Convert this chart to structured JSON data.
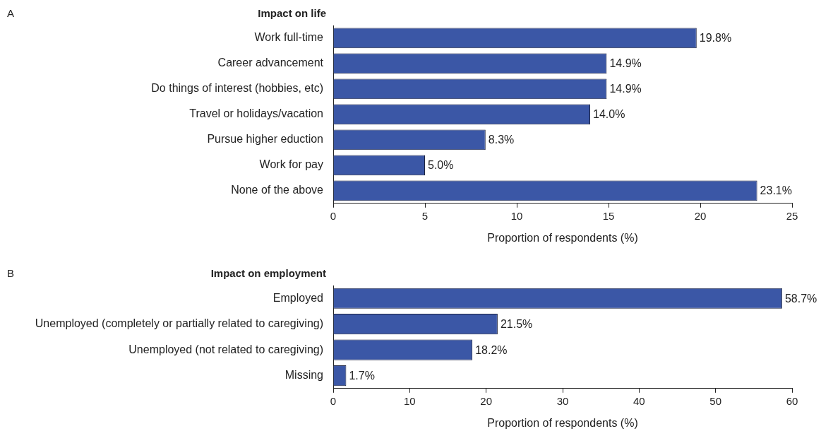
{
  "chart_data": [
    {
      "type": "bar",
      "orientation": "horizontal",
      "title": "Impact on life",
      "annotations": [
        "A"
      ],
      "xlabel": "Proportion of respondents (%)",
      "categories": [
        "Work full-time",
        "Career advancement",
        "Do things of interest (hobbies, etc)",
        "Travel or holidays/vacation",
        "Pursue higher eduction",
        "Work for pay",
        "None of the above"
      ],
      "values": [
        19.8,
        14.9,
        14.9,
        14.0,
        8.3,
        5.0,
        23.1
      ],
      "color": "#3b57a6",
      "value_labels": [
        "19.8%",
        "14.9%",
        "14.9%",
        "14.0%",
        "8.3%",
        "5.0%",
        "23.1%"
      ],
      "xlim": [
        0,
        25
      ],
      "xticks": [
        0,
        5,
        10,
        15,
        20,
        25
      ],
      "grid": false,
      "legend": false
    },
    {
      "type": "bar",
      "orientation": "horizontal",
      "title": "Impact on employment",
      "annotations": [
        "B"
      ],
      "xlabel": "Proportion of respondents (%)",
      "categories": [
        "Employed",
        "Unemployed (completely or partially related to caregiving)",
        "Unemployed (not related to caregiving)",
        "Missing"
      ],
      "values": [
        58.7,
        21.5,
        18.2,
        1.7
      ],
      "color": "#3b57a6",
      "value_labels": [
        "58.7%",
        "21.5%",
        "18.2%",
        "1.7%"
      ],
      "xlim": [
        0,
        60
      ],
      "xticks": [
        0,
        10,
        20,
        30,
        40,
        50,
        60
      ],
      "grid": false,
      "legend": false
    }
  ]
}
